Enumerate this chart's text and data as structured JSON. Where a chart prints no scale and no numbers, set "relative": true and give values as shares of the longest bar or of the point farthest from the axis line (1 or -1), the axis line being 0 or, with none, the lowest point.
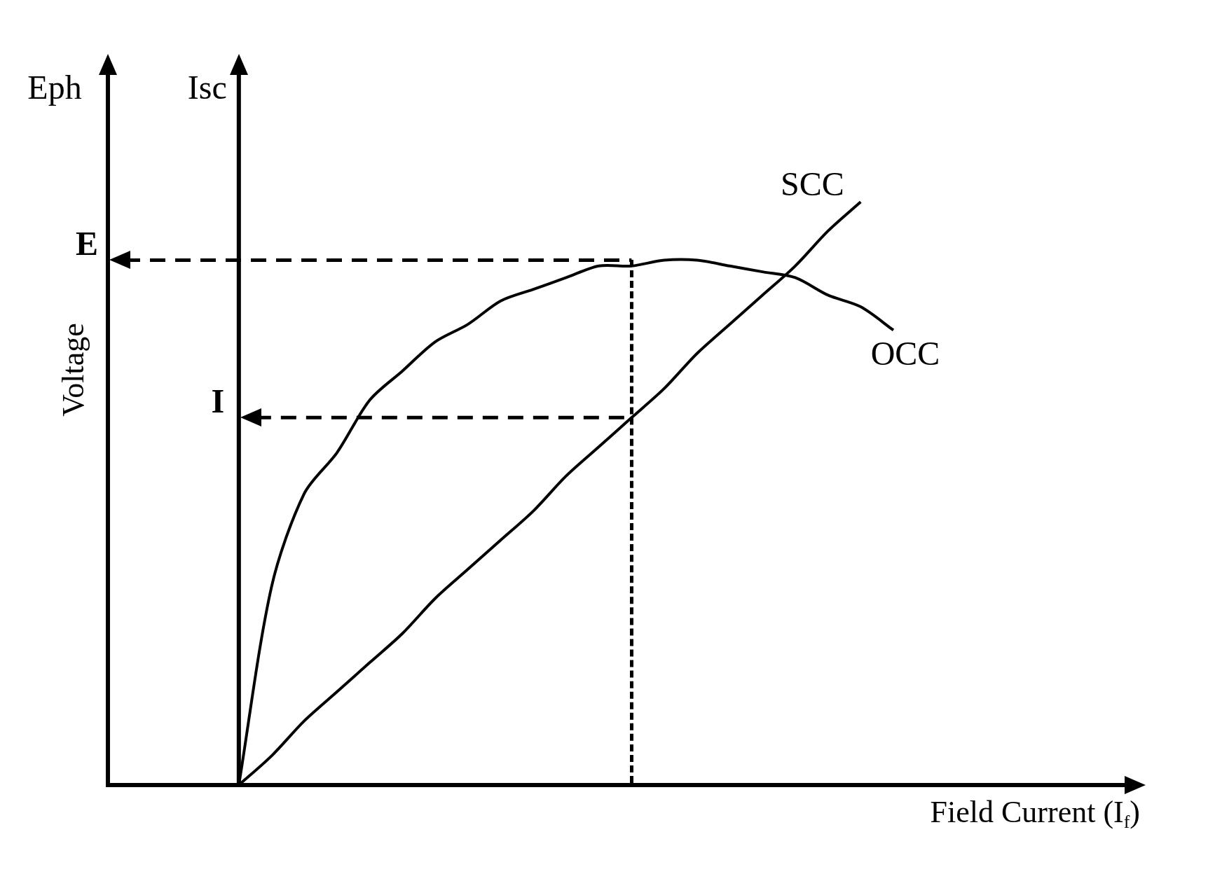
{
  "chart_data": {
    "type": "line",
    "relative": true,
    "ylabel": "Voltage",
    "xlabel": "Field Current (I$_{f}$)",
    "annotations": [
      "Eph",
      "Isc"
    ],
    "categories": [
      null,
      null,
      null,
      null,
      null,
      null,
      null,
      null,
      null,
      null,
      null,
      null,
      null,
      null,
      null,
      null,
      null,
      null,
      null,
      null,
      null,
      null,
      null,
      null,
      null,
      null,
      null,
      null,
      null,
      null,
      null,
      null
    ],
    "series": [
      {
        "name": "SCC",
        "color": "#000000",
        "values": [
          null,
          null,
          null,
          null,
          0,
          0.05,
          0.11,
          0.16,
          0.21,
          0.26,
          0.32,
          0.37,
          0.42,
          0.47,
          0.53,
          0.58,
          0.63,
          0.68,
          0.74,
          0.79,
          0.84,
          0.89,
          0.95,
          1,
          null,
          null,
          null,
          null,
          null,
          null,
          null,
          null
        ]
      },
      {
        "name": "OCC",
        "color": "#000000",
        "values": [
          null,
          null,
          null,
          null,
          0,
          0.34,
          0.5,
          0.57,
          0.66,
          0.71,
          0.76,
          0.79,
          0.83,
          0.85,
          0.87,
          0.89,
          0.89,
          0.9,
          0.9,
          0.89,
          0.88,
          0.87,
          0.84,
          0.82,
          0.78,
          null,
          null,
          null,
          null,
          null,
          null,
          null
        ]
      }
    ],
    "ref_lines": [
      {
        "axis": "y",
        "value": 0.9,
        "label": "E",
        "color": "#000000",
        "line_style": "dashed"
      },
      {
        "axis": "y",
        "value": 0.63,
        "label": "I",
        "color": "#000000",
        "line_style": "dashed"
      }
    ],
    "legend": false,
    "marker": "none",
    "line_style": "solid"
  }
}
